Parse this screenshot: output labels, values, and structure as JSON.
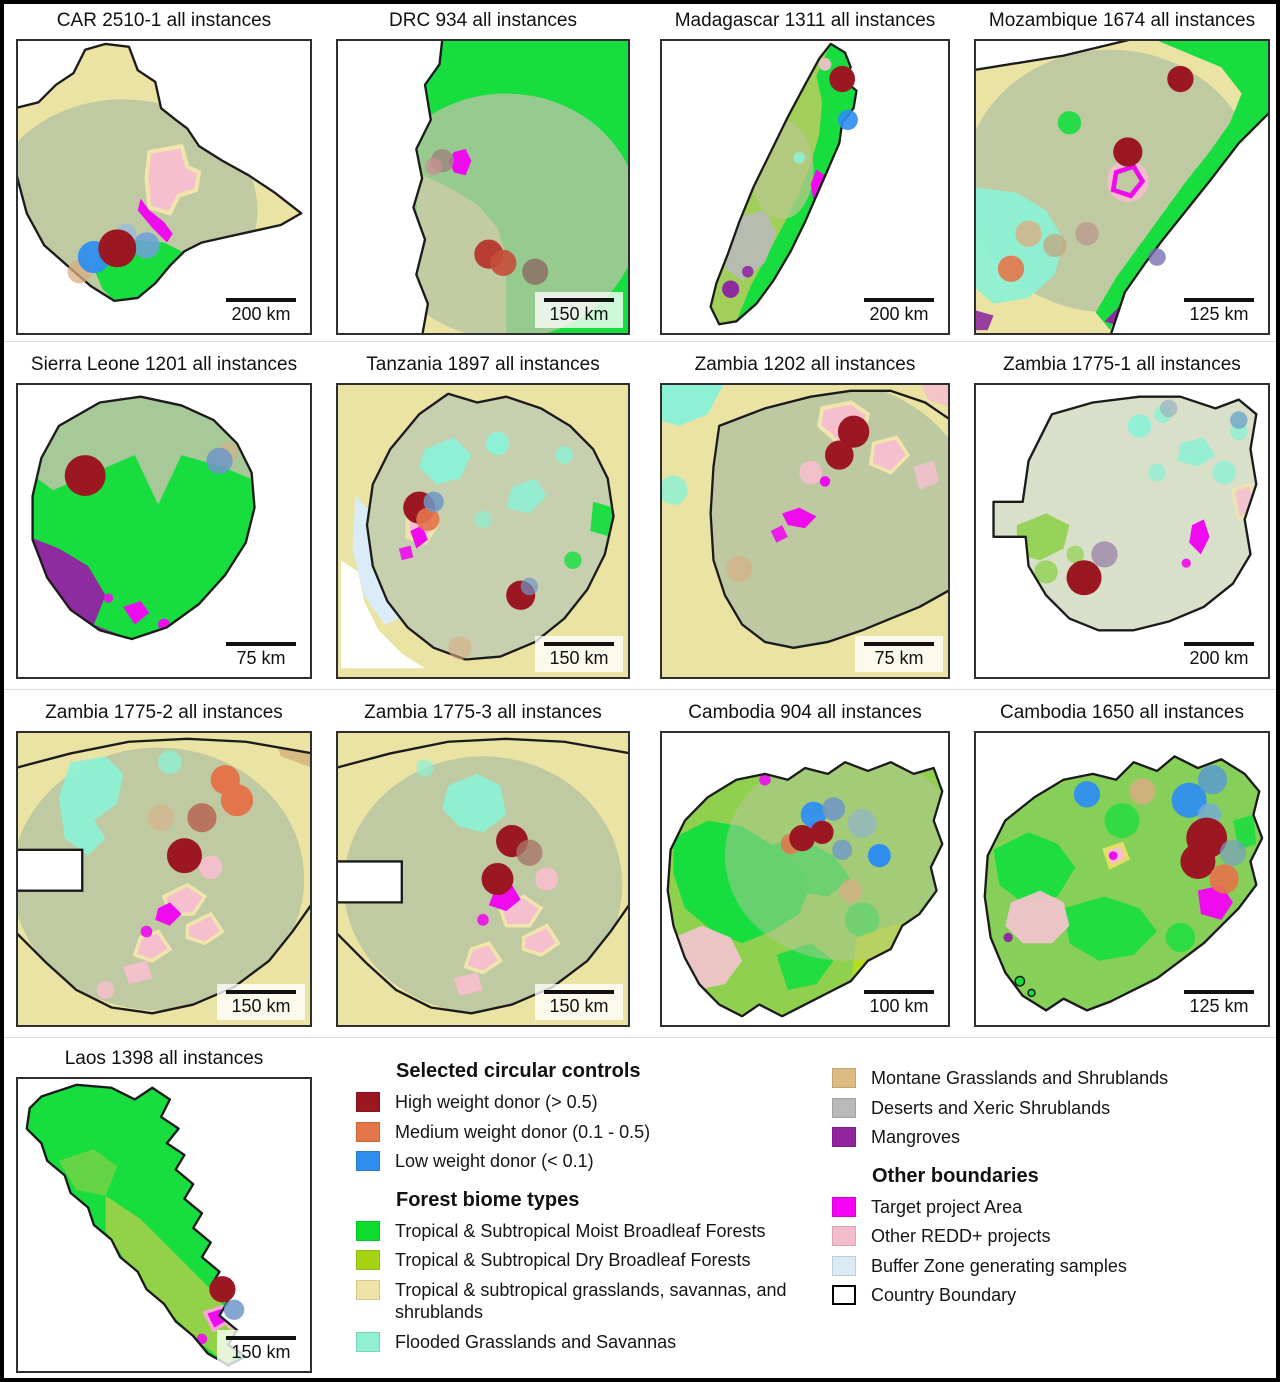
{
  "marker_colors": {
    "high": "#9b1722",
    "medium": "#e4744a",
    "low": "#2f8ef0"
  },
  "panels": [
    {
      "id": "car-2510-1",
      "title": "CAR 2510-1 all instances",
      "scale_label": "200 km",
      "markers": [
        {
          "c": "#d8ae83",
          "x": 21,
          "y": 79,
          "r": 4,
          "o": 0.75
        },
        {
          "w": "low",
          "x": 26,
          "y": 74,
          "r": 5.5,
          "o": 0.95
        },
        {
          "c": "#6fa0dc",
          "x": 44,
          "y": 70,
          "r": 4.5,
          "o": 0.85
        },
        {
          "c": "#93b8e6",
          "x": 37,
          "y": 66,
          "r": 3.5,
          "o": 0.7
        },
        {
          "w": "high",
          "x": 34,
          "y": 71,
          "r": 6.5
        }
      ]
    },
    {
      "id": "drc-934",
      "title": "DRC 934 all instances",
      "scale_label": "150 km",
      "markers": [
        {
          "c": "#9a8a80",
          "x": 36,
          "y": 41,
          "r": 4,
          "o": 0.85
        },
        {
          "c": "#c98f92",
          "x": 33,
          "y": 43,
          "r": 3,
          "o": 0.7
        },
        {
          "c": "#b5362c",
          "x": 52,
          "y": 73,
          "r": 5,
          "o": 0.95
        },
        {
          "c": "#c44e3a",
          "x": 57,
          "y": 76,
          "r": 4.5,
          "o": 0.9
        },
        {
          "c": "#8d7066",
          "x": 68,
          "y": 79,
          "r": 4.5,
          "o": 0.85
        }
      ]
    },
    {
      "id": "madagascar-1311",
      "title": "Madagascar 1311 all instances",
      "scale_label": "200 km",
      "markers": [
        {
          "w": "high",
          "x": 63,
          "y": 13,
          "r": 4.5
        },
        {
          "w": "low",
          "x": 65,
          "y": 27,
          "r": 3.5,
          "o": 0.9
        }
      ]
    },
    {
      "id": "mozambique-1674",
      "title": "Mozambique 1674 all instances",
      "scale_label": "125 km",
      "markers": [
        {
          "w": "high",
          "x": 70,
          "y": 13,
          "r": 4.5
        },
        {
          "w": "high",
          "x": 52,
          "y": 38,
          "r": 5
        },
        {
          "c": "#d8ae83",
          "x": 18,
          "y": 66,
          "r": 4.5,
          "o": 0.8
        },
        {
          "c": "#c9a07c",
          "x": 27,
          "y": 70,
          "r": 4,
          "o": 0.7
        },
        {
          "c": "#b9908a",
          "x": 38,
          "y": 66,
          "r": 4,
          "o": 0.65
        },
        {
          "w": "medium",
          "x": 12,
          "y": 78,
          "r": 4.5,
          "o": 0.9
        },
        {
          "c": "#7a70b2",
          "x": 62,
          "y": 74,
          "r": 3,
          "o": 0.8
        }
      ]
    },
    {
      "id": "sierra-leone-1201",
      "title": "Sierra Leone 1201 all instances",
      "scale_label": "75 km",
      "markers": [
        {
          "w": "high",
          "x": 23,
          "y": 31,
          "r": 7
        },
        {
          "c": "#d8ae83",
          "x": 72,
          "y": 23,
          "r": 3.5,
          "o": 0.6
        },
        {
          "c": "#6f97c8",
          "x": 69,
          "y": 26,
          "r": 4.5,
          "o": 0.85
        }
      ]
    },
    {
      "id": "tanzania-1897",
      "title": "Tanzania 1897 all instances",
      "scale_label": "150 km",
      "markers": [
        {
          "w": "high",
          "x": 28,
          "y": 42,
          "r": 5.5
        },
        {
          "w": "medium",
          "x": 31,
          "y": 46,
          "r": 4,
          "o": 0.9
        },
        {
          "c": "#6f97c8",
          "x": 33,
          "y": 40,
          "r": 3.5,
          "o": 0.85
        },
        {
          "w": "high",
          "x": 63,
          "y": 72,
          "r": 5
        },
        {
          "c": "#6f97c8",
          "x": 66,
          "y": 69,
          "r": 3,
          "o": 0.7
        },
        {
          "c": "#d8ae83",
          "x": 42,
          "y": 90,
          "r": 4,
          "o": 0.6
        }
      ]
    },
    {
      "id": "zambia-1202",
      "title": "Zambia 1202 all instances",
      "scale_label": "75 km",
      "markers": [
        {
          "w": "high",
          "x": 67,
          "y": 16,
          "r": 5.5
        },
        {
          "w": "high",
          "x": 62,
          "y": 24,
          "r": 5
        },
        {
          "c": "#d8ae83",
          "x": 27,
          "y": 63,
          "r": 4.5,
          "o": 0.65
        }
      ]
    },
    {
      "id": "zambia-1775-1",
      "title": "Zambia 1775-1 all instances",
      "scale_label": "200 km",
      "markers": [
        {
          "w": "high",
          "x": 37,
          "y": 66,
          "r": 6
        },
        {
          "c": "#9b87aa",
          "x": 44,
          "y": 58,
          "r": 4.5,
          "o": 0.8
        },
        {
          "c": "#6aa8c8",
          "x": 90,
          "y": 12,
          "r": 3,
          "o": 0.8
        },
        {
          "c": "#9ab0be",
          "x": 66,
          "y": 8,
          "r": 3,
          "o": 0.7
        }
      ]
    },
    {
      "id": "zambia-1775-2",
      "title": "Zambia 1775-2 all instances",
      "scale_label": "150 km",
      "markers": [
        {
          "w": "medium",
          "x": 71,
          "y": 16,
          "r": 5
        },
        {
          "w": "medium",
          "x": 75,
          "y": 23,
          "r": 5.5
        },
        {
          "c": "#b86a58",
          "x": 63,
          "y": 29,
          "r": 5,
          "o": 0.9
        },
        {
          "c": "#d8ae83",
          "x": 49,
          "y": 29,
          "r": 4.5,
          "o": 0.6
        },
        {
          "w": "high",
          "x": 57,
          "y": 42,
          "r": 6
        }
      ]
    },
    {
      "id": "zambia-1775-3",
      "title": "Zambia 1775-3 all instances",
      "scale_label": "150 km",
      "markers": [
        {
          "w": "high",
          "x": 60,
          "y": 37,
          "r": 5.5
        },
        {
          "c": "#a8766a",
          "x": 66,
          "y": 41,
          "r": 4.5,
          "o": 0.8
        },
        {
          "w": "high",
          "x": 55,
          "y": 50,
          "r": 5.5
        }
      ]
    },
    {
      "id": "cambodia-904",
      "title": "Cambodia 904 all instances",
      "scale_label": "100 km",
      "markers": [
        {
          "c": "#8fb0d8",
          "x": 70,
          "y": 31,
          "r": 5,
          "o": 0.6
        },
        {
          "w": "low",
          "x": 53,
          "y": 28,
          "r": 4.5,
          "o": 0.95
        },
        {
          "c": "#6f97c8",
          "x": 60,
          "y": 26,
          "r": 4,
          "o": 0.85
        },
        {
          "w": "medium",
          "x": 45,
          "y": 38,
          "r": 3.5,
          "o": 0.85
        },
        {
          "w": "high",
          "x": 49,
          "y": 36,
          "r": 4.5
        },
        {
          "w": "high",
          "x": 56,
          "y": 34,
          "r": 4
        },
        {
          "w": "low",
          "x": 76,
          "y": 42,
          "r": 4
        },
        {
          "c": "#6f97c8",
          "x": 63,
          "y": 40,
          "r": 3.5,
          "o": 0.8
        },
        {
          "c": "#d8ae83",
          "x": 66,
          "y": 54,
          "r": 4,
          "o": 0.75
        }
      ]
    },
    {
      "id": "cambodia-1650",
      "title": "Cambodia 1650 all instances",
      "scale_label": "125 km",
      "markers": [
        {
          "w": "low",
          "x": 38,
          "y": 21,
          "r": 4.5,
          "o": 0.95
        },
        {
          "c": "#d8ae83",
          "x": 57,
          "y": 20,
          "r": 4.5,
          "o": 0.85
        },
        {
          "w": "low",
          "x": 73,
          "y": 23,
          "r": 6,
          "o": 0.95
        },
        {
          "c": "#5a9ad0",
          "x": 81,
          "y": 16,
          "r": 5,
          "o": 0.85
        },
        {
          "c": "#74aad8",
          "x": 80,
          "y": 28,
          "r": 4,
          "o": 0.8
        },
        {
          "w": "high",
          "x": 79,
          "y": 36,
          "r": 7
        },
        {
          "w": "high",
          "x": 76,
          "y": 44,
          "r": 6
        },
        {
          "w": "medium",
          "x": 85,
          "y": 50,
          "r": 5,
          "o": 0.92
        },
        {
          "c": "#7a9ec0",
          "x": 88,
          "y": 41,
          "r": 4.5,
          "o": 0.7
        }
      ]
    },
    {
      "id": "laos-1398",
      "title": "Laos 1398 all instances",
      "scale_label": "150 km",
      "markers": [
        {
          "w": "high",
          "x": 70,
          "y": 72,
          "r": 4.5
        },
        {
          "c": "#6f97c8",
          "x": 74,
          "y": 79,
          "r": 3.5,
          "o": 0.85
        }
      ]
    }
  ],
  "legend": {
    "columns": [
      {
        "sections": [
          {
            "heading": "Selected circular controls",
            "items": [
              {
                "label": "High weight donor (> 0.5)",
                "color": "#9b1722"
              },
              {
                "label": "Medium weight donor (0.1 - 0.5)",
                "color": "#e4744a"
              },
              {
                "label": "Low weight donor (< 0.1)",
                "color": "#2f8ef0"
              }
            ]
          },
          {
            "heading": "Forest biome types",
            "items": [
              {
                "label": "Tropical & Subtropical Moist Broadleaf Forests",
                "color": "#0ddd2d"
              },
              {
                "label": "Tropical & Subtropical Dry Broadleaf Forests",
                "color": "#a5d414"
              },
              {
                "label": "Tropical & subtropical grasslands, savannas, and shrublands",
                "color": "#ede4a6"
              },
              {
                "label": "Flooded Grasslands and Savannas",
                "color": "#8ff0d4"
              }
            ]
          }
        ]
      },
      {
        "sections": [
          {
            "heading": "",
            "items": [
              {
                "label": "Montane Grasslands and Shrublands",
                "color": "#ddbc84"
              },
              {
                "label": "Deserts and Xeric Shrublands",
                "color": "#b9b9b9"
              },
              {
                "label": "Mangroves",
                "color": "#93229e"
              }
            ]
          },
          {
            "heading": "Other boundaries",
            "items": [
              {
                "label": "Target project Area",
                "color": "#f404f4"
              },
              {
                "label": "Other REDD+ projects",
                "color": "#f5bdcb"
              },
              {
                "label": "Buffer Zone generating samples",
                "color": "#daebf5"
              },
              {
                "label": "Country Boundary",
                "color": "#ffffff",
                "outline": "#000000"
              }
            ]
          }
        ]
      }
    ]
  }
}
